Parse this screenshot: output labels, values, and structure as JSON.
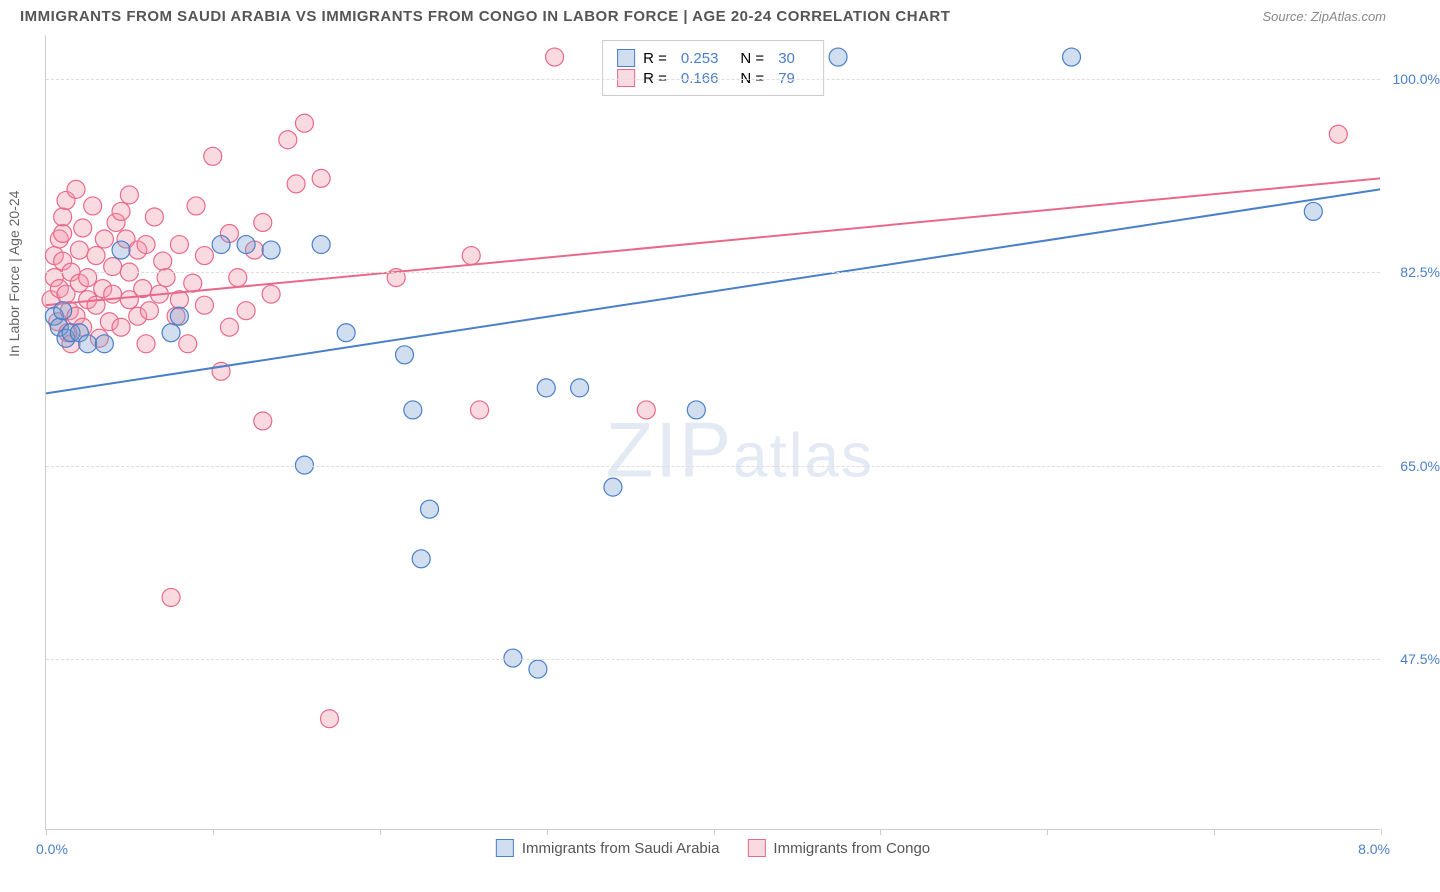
{
  "header": {
    "title": "IMMIGRANTS FROM SAUDI ARABIA VS IMMIGRANTS FROM CONGO IN LABOR FORCE | AGE 20-24 CORRELATION CHART",
    "source": "Source: ZipAtlas.com"
  },
  "chart": {
    "type": "scatter",
    "y_axis_label": "In Labor Force | Age 20-24",
    "xlim": [
      0.0,
      8.0
    ],
    "ylim": [
      32.0,
      104.0
    ],
    "x_ticks": [
      0,
      1,
      2,
      3,
      4,
      5,
      6,
      7,
      8
    ],
    "y_grid": [
      47.5,
      65.0,
      82.5,
      100.0
    ],
    "y_tick_labels": [
      "47.5%",
      "65.0%",
      "82.5%",
      "100.0%"
    ],
    "x_min_label": "0.0%",
    "x_max_label": "8.0%",
    "background_color": "#ffffff",
    "grid_color": "#dddddd",
    "axis_color": "#cccccc",
    "tick_font_color": "#4a7fc9",
    "tick_fontsize": 14,
    "marker_radius": 9,
    "marker_stroke_width": 1.2,
    "trend_line_width": 2,
    "watermark": "ZIPatlas"
  },
  "series": {
    "saudi": {
      "label": "Immigrants from Saudi Arabia",
      "stroke": "#4a7fc9",
      "fill": "rgba(120,160,210,0.35)",
      "r_value": "0.253",
      "n_value": "30",
      "trend": {
        "x1": 0.0,
        "y1": 71.5,
        "x2": 8.0,
        "y2": 90.0
      },
      "points": [
        [
          0.05,
          78.5
        ],
        [
          0.08,
          77.5
        ],
        [
          0.1,
          79.0
        ],
        [
          0.12,
          76.5
        ],
        [
          0.15,
          77.0
        ],
        [
          0.2,
          77.0
        ],
        [
          0.25,
          76.0
        ],
        [
          0.35,
          76.0
        ],
        [
          0.45,
          84.5
        ],
        [
          0.75,
          77.0
        ],
        [
          0.8,
          78.5
        ],
        [
          1.05,
          85.0
        ],
        [
          1.2,
          85.0
        ],
        [
          1.35,
          84.5
        ],
        [
          1.55,
          65.0
        ],
        [
          1.65,
          85.0
        ],
        [
          1.8,
          77.0
        ],
        [
          2.15,
          75.0
        ],
        [
          2.2,
          70.0
        ],
        [
          2.3,
          61.0
        ],
        [
          2.25,
          56.5
        ],
        [
          2.8,
          47.5
        ],
        [
          2.95,
          46.5
        ],
        [
          3.0,
          72.0
        ],
        [
          3.2,
          72.0
        ],
        [
          3.4,
          63.0
        ],
        [
          3.9,
          70.0
        ],
        [
          4.75,
          102.0
        ],
        [
          6.15,
          102.0
        ],
        [
          7.6,
          88.0
        ]
      ]
    },
    "congo": {
      "label": "Immigrants from Congo",
      "stroke": "#e86a8a",
      "fill": "rgba(240,150,170,0.35)",
      "r_value": "0.166",
      "n_value": "79",
      "trend": {
        "x1": 0.0,
        "y1": 79.5,
        "x2": 8.0,
        "y2": 91.0
      },
      "points": [
        [
          0.03,
          80.0
        ],
        [
          0.05,
          82.0
        ],
        [
          0.05,
          84.0
        ],
        [
          0.07,
          78.0
        ],
        [
          0.08,
          85.5
        ],
        [
          0.08,
          81.0
        ],
        [
          0.1,
          83.5
        ],
        [
          0.1,
          86.0
        ],
        [
          0.1,
          87.5
        ],
        [
          0.12,
          89.0
        ],
        [
          0.12,
          80.5
        ],
        [
          0.13,
          77.0
        ],
        [
          0.14,
          79.0
        ],
        [
          0.15,
          82.5
        ],
        [
          0.15,
          76.0
        ],
        [
          0.18,
          78.5
        ],
        [
          0.18,
          90.0
        ],
        [
          0.2,
          81.5
        ],
        [
          0.2,
          84.5
        ],
        [
          0.22,
          77.5
        ],
        [
          0.22,
          86.5
        ],
        [
          0.25,
          80.0
        ],
        [
          0.25,
          82.0
        ],
        [
          0.28,
          88.5
        ],
        [
          0.3,
          79.5
        ],
        [
          0.3,
          84.0
        ],
        [
          0.32,
          76.5
        ],
        [
          0.34,
          81.0
        ],
        [
          0.35,
          85.5
        ],
        [
          0.38,
          78.0
        ],
        [
          0.4,
          80.5
        ],
        [
          0.4,
          83.0
        ],
        [
          0.42,
          87.0
        ],
        [
          0.45,
          88.0
        ],
        [
          0.45,
          77.5
        ],
        [
          0.48,
          85.5
        ],
        [
          0.5,
          80.0
        ],
        [
          0.5,
          82.5
        ],
        [
          0.5,
          89.5
        ],
        [
          0.55,
          84.5
        ],
        [
          0.55,
          78.5
        ],
        [
          0.58,
          81.0
        ],
        [
          0.6,
          76.0
        ],
        [
          0.6,
          85.0
        ],
        [
          0.62,
          79.0
        ],
        [
          0.65,
          87.5
        ],
        [
          0.68,
          80.5
        ],
        [
          0.7,
          83.5
        ],
        [
          0.72,
          82.0
        ],
        [
          0.75,
          53.0
        ],
        [
          0.78,
          78.5
        ],
        [
          0.8,
          85.0
        ],
        [
          0.8,
          80.0
        ],
        [
          0.85,
          76.0
        ],
        [
          0.88,
          81.5
        ],
        [
          0.9,
          88.5
        ],
        [
          0.95,
          79.5
        ],
        [
          0.95,
          84.0
        ],
        [
          1.0,
          93.0
        ],
        [
          1.05,
          73.5
        ],
        [
          1.1,
          77.5
        ],
        [
          1.1,
          86.0
        ],
        [
          1.15,
          82.0
        ],
        [
          1.2,
          79.0
        ],
        [
          1.25,
          84.5
        ],
        [
          1.3,
          87.0
        ],
        [
          1.3,
          69.0
        ],
        [
          1.35,
          80.5
        ],
        [
          1.45,
          94.5
        ],
        [
          1.5,
          90.5
        ],
        [
          1.55,
          96.0
        ],
        [
          1.65,
          91.0
        ],
        [
          1.7,
          42.0
        ],
        [
          2.1,
          82.0
        ],
        [
          2.55,
          84.0
        ],
        [
          2.6,
          70.0
        ],
        [
          3.05,
          102.0
        ],
        [
          3.6,
          70.0
        ],
        [
          7.75,
          95.0
        ]
      ]
    }
  },
  "legend": {
    "r_label": "R =",
    "n_label": "N ="
  }
}
